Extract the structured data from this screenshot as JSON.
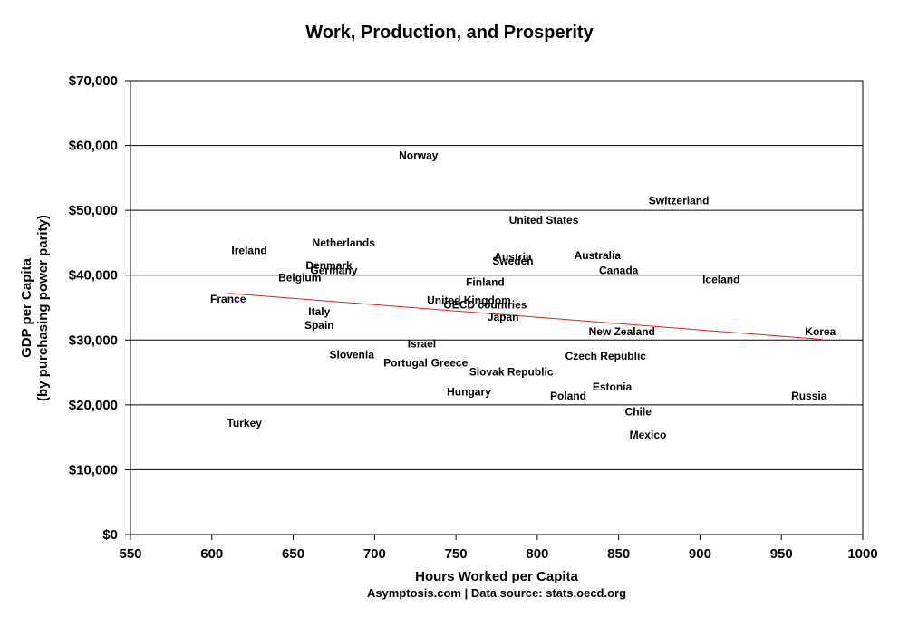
{
  "chart_data": {
    "type": "scatter",
    "title": "Work, Production, and Prosperity",
    "xlabel": "Hours Worked per Capita",
    "ylabel_line1": "GDP per Capita",
    "ylabel_line2": "(by purchasing power parity)",
    "source": "Asymptosis.com | Data source: stats.oecd.org",
    "xlim": [
      550,
      1000
    ],
    "ylim": [
      0,
      70000
    ],
    "xticks": [
      550,
      600,
      650,
      700,
      750,
      800,
      850,
      900,
      950,
      1000
    ],
    "xtick_labels": [
      "550",
      "600",
      "650",
      "700",
      "750",
      "800",
      "850",
      "900",
      "950",
      "1000"
    ],
    "yticks": [
      0,
      10000,
      20000,
      30000,
      40000,
      50000,
      60000,
      70000
    ],
    "ytick_labels": [
      "$0",
      "$10,000",
      "$20,000",
      "$30,000",
      "$40,000",
      "$50,000",
      "$60,000",
      "$70,000"
    ],
    "grid": "horizontal",
    "trendline": {
      "color": "#e0201b",
      "x": [
        610,
        975
      ],
      "y": [
        37200,
        30100
      ]
    },
    "points": [
      {
        "label": "Norway",
        "x": 727,
        "y": 58500
      },
      {
        "label": "Switzerland",
        "x": 887,
        "y": 51500
      },
      {
        "label": "United States",
        "x": 804,
        "y": 48500
      },
      {
        "label": "Ireland",
        "x": 623,
        "y": 43800
      },
      {
        "label": "Netherlands",
        "x": 681,
        "y": 45000
      },
      {
        "label": "Denmark",
        "x": 672,
        "y": 41500
      },
      {
        "label": "Germany",
        "x": 675,
        "y": 40700
      },
      {
        "label": "Belgium",
        "x": 654,
        "y": 39600
      },
      {
        "label": "Austria",
        "x": 785,
        "y": 42800
      },
      {
        "label": "Sweden",
        "x": 785,
        "y": 42200
      },
      {
        "label": "Australia",
        "x": 837,
        "y": 43000
      },
      {
        "label": "Canada",
        "x": 850,
        "y": 40700
      },
      {
        "label": "Iceland",
        "x": 913,
        "y": 39300
      },
      {
        "label": "Finland",
        "x": 768,
        "y": 38900
      },
      {
        "label": "France",
        "x": 610,
        "y": 36300
      },
      {
        "label": "United Kingdom",
        "x": 758,
        "y": 36100
      },
      {
        "label": "OECD countries",
        "x": 768,
        "y": 35400
      },
      {
        "label": "Italy",
        "x": 666,
        "y": 34400
      },
      {
        "label": "Japan",
        "x": 779,
        "y": 33500
      },
      {
        "label": "Spain",
        "x": 666,
        "y": 32300
      },
      {
        "label": "New Zealand",
        "x": 852,
        "y": 31300
      },
      {
        "label": "Korea",
        "x": 974,
        "y": 31300
      },
      {
        "label": "Israel",
        "x": 729,
        "y": 29400
      },
      {
        "label": "Slovenia",
        "x": 686,
        "y": 27700
      },
      {
        "label": "Czech Republic",
        "x": 842,
        "y": 27500
      },
      {
        "label": "Portugal",
        "x": 719,
        "y": 26500
      },
      {
        "label": "Greece",
        "x": 746,
        "y": 26500
      },
      {
        "label": "Slovak Republic",
        "x": 784,
        "y": 25100
      },
      {
        "label": "Estonia",
        "x": 846,
        "y": 22800
      },
      {
        "label": "Hungary",
        "x": 758,
        "y": 22000
      },
      {
        "label": "Poland",
        "x": 819,
        "y": 21400
      },
      {
        "label": "Russia",
        "x": 967,
        "y": 21400
      },
      {
        "label": "Chile",
        "x": 862,
        "y": 18900
      },
      {
        "label": "Turkey",
        "x": 620,
        "y": 17200
      },
      {
        "label": "Mexico",
        "x": 868,
        "y": 15400
      }
    ]
  }
}
